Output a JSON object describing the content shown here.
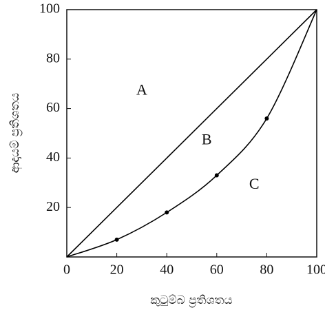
{
  "chart_data": {
    "type": "line",
    "x_label": "කුටුම්බ ප්‍රතිශතය",
    "y_label": "ආදායම් ප්‍රතිශතය",
    "x": [
      0,
      20,
      40,
      60,
      80,
      100
    ],
    "series": [
      {
        "color": "#000000",
        "values": [
          0,
          20,
          40,
          60,
          80,
          100
        ],
        "markers": false
      },
      {
        "color": "#000000",
        "values": [
          0,
          7,
          18,
          33,
          56,
          100
        ],
        "markers": true
      }
    ],
    "xlim": [
      0,
      100
    ],
    "ylim": [
      0,
      100
    ],
    "xticks": [
      0,
      20,
      40,
      60,
      80,
      100
    ],
    "yticks": [
      20,
      40,
      60,
      80,
      100
    ],
    "grid": false,
    "annotations": [
      {
        "text": "A",
        "x": 30,
        "y": 67
      },
      {
        "text": "B",
        "x": 56,
        "y": 47
      },
      {
        "text": "C",
        "x": 75,
        "y": 29
      }
    ]
  }
}
